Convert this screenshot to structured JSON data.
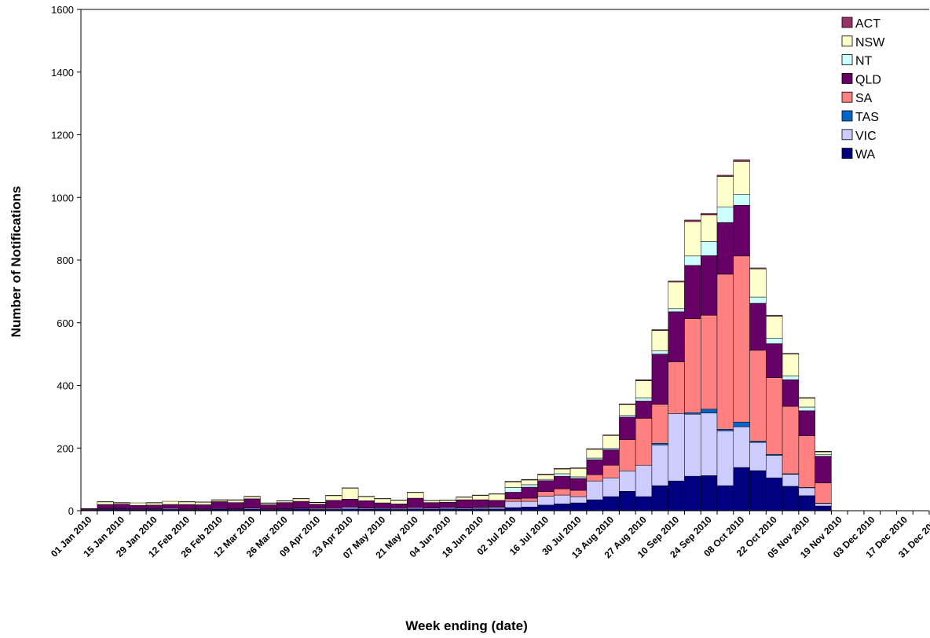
{
  "chart_data": {
    "type": "bar",
    "stacked": true,
    "xlabel": "Week ending (date)",
    "ylabel": "Number of Notifications",
    "ylim": [
      0,
      1600
    ],
    "yticks": [
      0,
      200,
      400,
      600,
      800,
      1000,
      1200,
      1400,
      1600
    ],
    "grid": false,
    "legend_position": "top-right",
    "x_tick_labels": [
      "01 Jan 2010",
      "15 Jan 2010",
      "29 Jan 2010",
      "12 Feb 2010",
      "26 Feb 2010",
      "12 Mar 2010",
      "26 Mar 2010",
      "09 Apr 2010",
      "23 Apr 2010",
      "07 May 2010",
      "21 May 2010",
      "04 Jun 2010",
      "18 Jun 2010",
      "02 Jul 2010",
      "16 Jul 2010",
      "30 Jul 2010",
      "13 Aug 2010",
      "27 Aug 2010",
      "10 Sep 2010",
      "24 Sep 2010",
      "08 Oct 2010",
      "22 Oct 2010",
      "05 Nov 2010",
      "19 Nov 2010",
      "03 Dec 2010",
      "17 Dec 2010",
      "31 Dec 2010"
    ],
    "categories": [
      "01 Jan 2010",
      "08 Jan 2010",
      "15 Jan 2010",
      "22 Jan 2010",
      "29 Jan 2010",
      "05 Feb 2010",
      "12 Feb 2010",
      "19 Feb 2010",
      "26 Feb 2010",
      "05 Mar 2010",
      "12 Mar 2010",
      "19 Mar 2010",
      "26 Mar 2010",
      "02 Apr 2010",
      "09 Apr 2010",
      "16 Apr 2010",
      "23 Apr 2010",
      "30 Apr 2010",
      "07 May 2010",
      "14 May 2010",
      "21 May 2010",
      "28 May 2010",
      "04 Jun 2010",
      "11 Jun 2010",
      "18 Jun 2010",
      "25 Jun 2010",
      "02 Jul 2010",
      "09 Jul 2010",
      "16 Jul 2010",
      "23 Jul 2010",
      "30 Jul 2010",
      "06 Aug 2010",
      "13 Aug 2010",
      "20 Aug 2010",
      "27 Aug 2010",
      "03 Sep 2010",
      "10 Sep 2010",
      "17 Sep 2010",
      "24 Sep 2010",
      "01 Oct 2010",
      "08 Oct 2010",
      "15 Oct 2010",
      "22 Oct 2010",
      "29 Oct 2010",
      "05 Nov 2010",
      "12 Nov 2010",
      "19 Nov 2010",
      "26 Nov 2010",
      "03 Dec 2010",
      "10 Dec 2010",
      "17 Dec 2010",
      "24 Dec 2010",
      "31 Dec 2010"
    ],
    "series": [
      {
        "name": "WA",
        "color": "#000080",
        "values": [
          1,
          4,
          4,
          3,
          4,
          4,
          3,
          3,
          5,
          4,
          5,
          3,
          4,
          6,
          4,
          4,
          6,
          5,
          6,
          4,
          6,
          5,
          6,
          5,
          6,
          6,
          10,
          12,
          18,
          22,
          25,
          35,
          45,
          62,
          45,
          80,
          95,
          110,
          112,
          80,
          138,
          128,
          105,
          78,
          48,
          15,
          0,
          0,
          0,
          0,
          0,
          0,
          0
        ]
      },
      {
        "name": "VIC",
        "color": "#CCCCFF",
        "values": [
          1,
          2,
          2,
          2,
          2,
          3,
          2,
          2,
          2,
          2,
          3,
          2,
          2,
          2,
          3,
          3,
          5,
          3,
          3,
          3,
          4,
          3,
          4,
          3,
          4,
          5,
          20,
          18,
          28,
          28,
          20,
          60,
          60,
          65,
          100,
          130,
          215,
          198,
          200,
          175,
          130,
          90,
          72,
          38,
          25,
          8,
          0,
          0,
          0,
          0,
          0,
          0,
          0
        ]
      },
      {
        "name": "TAS",
        "color": "#0066CC",
        "values": [
          0,
          0,
          0,
          0,
          0,
          0,
          0,
          0,
          0,
          0,
          0,
          0,
          0,
          0,
          0,
          0,
          0,
          0,
          0,
          0,
          0,
          0,
          0,
          0,
          0,
          0,
          0,
          0,
          0,
          0,
          0,
          0,
          0,
          0,
          0,
          5,
          0,
          5,
          12,
          5,
          15,
          4,
          3,
          2,
          1,
          1,
          0,
          0,
          0,
          0,
          0,
          0,
          0
        ]
      },
      {
        "name": "SA",
        "color": "#FF8080",
        "values": [
          0,
          0,
          0,
          0,
          0,
          0,
          0,
          0,
          0,
          0,
          0,
          0,
          0,
          0,
          0,
          0,
          0,
          0,
          0,
          0,
          0,
          0,
          0,
          0,
          1,
          1,
          8,
          10,
          15,
          20,
          20,
          20,
          40,
          100,
          150,
          125,
          165,
          300,
          300,
          495,
          530,
          290,
          245,
          215,
          165,
          65,
          0,
          0,
          0,
          0,
          0,
          0,
          0
        ]
      },
      {
        "name": "QLD",
        "color": "#660066",
        "values": [
          4,
          14,
          15,
          12,
          12,
          13,
          15,
          14,
          22,
          20,
          30,
          14,
          20,
          22,
          14,
          26,
          26,
          24,
          16,
          15,
          30,
          18,
          17,
          27,
          24,
          21,
          21,
          35,
          35,
          40,
          38,
          48,
          50,
          72,
          55,
          160,
          160,
          170,
          190,
          165,
          162,
          150,
          108,
          85,
          80,
          85,
          0,
          0,
          0,
          0,
          0,
          0,
          0
        ]
      },
      {
        "name": "NT",
        "color": "#CCFFFF",
        "values": [
          0,
          0,
          0,
          0,
          0,
          0,
          0,
          0,
          0,
          0,
          0,
          0,
          0,
          0,
          0,
          0,
          0,
          0,
          0,
          0,
          0,
          0,
          0,
          0,
          0,
          0,
          15,
          8,
          4,
          8,
          5,
          5,
          5,
          5,
          10,
          10,
          10,
          30,
          45,
          50,
          35,
          20,
          18,
          12,
          12,
          6,
          0,
          0,
          0,
          0,
          0,
          0,
          0
        ]
      },
      {
        "name": "NSW",
        "color": "#FFFFCC",
        "values": [
          1,
          8,
          4,
          8,
          7,
          10,
          8,
          8,
          5,
          8,
          7,
          5,
          5,
          8,
          5,
          15,
          35,
          13,
          13,
          11,
          18,
          6,
          6,
          8,
          14,
          20,
          18,
          15,
          15,
          15,
          27,
          28,
          40,
          35,
          55,
          65,
          85,
          110,
          85,
          97,
          105,
          90,
          70,
          70,
          28,
          8,
          0,
          0,
          0,
          0,
          0,
          0,
          0
        ]
      },
      {
        "name": "ACT",
        "color": "#993366",
        "values": [
          0,
          1,
          1,
          0,
          1,
          0,
          1,
          1,
          1,
          1,
          1,
          1,
          1,
          1,
          1,
          1,
          1,
          1,
          1,
          1,
          1,
          1,
          1,
          1,
          1,
          1,
          2,
          2,
          2,
          2,
          2,
          2,
          2,
          2,
          3,
          3,
          3,
          5,
          5,
          4,
          5,
          3,
          3,
          2,
          2,
          2,
          0,
          0,
          0,
          0,
          0,
          0,
          0
        ]
      }
    ]
  }
}
